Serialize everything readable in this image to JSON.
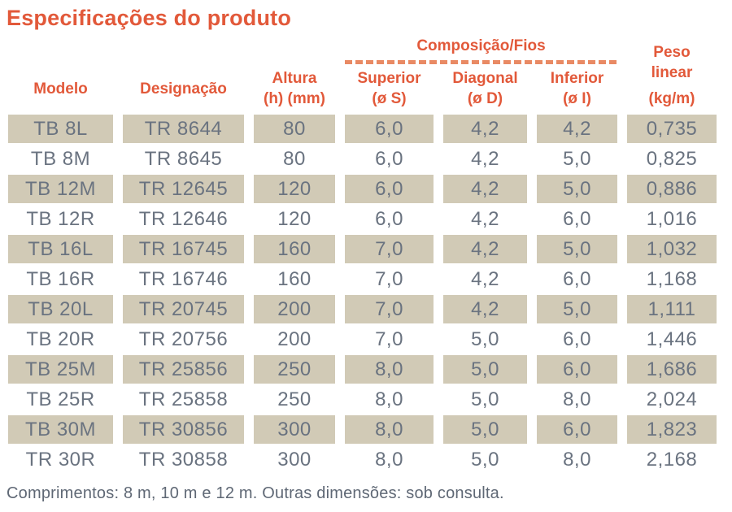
{
  "title": "Especificações do produto",
  "footnote": "Comprimentos: 8 m, 10 m e 12 m. Outras dimensões: sob consulta.",
  "colors": {
    "accent_orange": "#e2593a",
    "dash_orange": "#e98a64",
    "row_shade_beige": "#d1cab6",
    "text_gray": "#6a7380",
    "footnote_gray": "#5f6875"
  },
  "table": {
    "group_header": {
      "label": "Composição/Fios",
      "spans_columns": [
        "superior",
        "diagonal",
        "inferior"
      ]
    },
    "columns": [
      {
        "id": "modelo",
        "lines": [
          "Modelo"
        ]
      },
      {
        "id": "designacao",
        "lines": [
          "Designação"
        ]
      },
      {
        "id": "altura",
        "lines": [
          "Altura",
          "(h) (mm)"
        ]
      },
      {
        "id": "superior",
        "lines": [
          "Superior",
          "(ø S)"
        ]
      },
      {
        "id": "diagonal",
        "lines": [
          "Diagonal",
          "(ø D)"
        ]
      },
      {
        "id": "inferior",
        "lines": [
          "Inferior",
          "(ø I)"
        ]
      },
      {
        "id": "peso_linear",
        "lines": [
          "Peso",
          "linear",
          "(kg/m)"
        ]
      }
    ],
    "rows": [
      [
        "TB 8L",
        "TR 8644",
        "80",
        "6,0",
        "4,2",
        "4,2",
        "0,735"
      ],
      [
        "TB 8M",
        "TR 8645",
        "80",
        "6,0",
        "4,2",
        "5,0",
        "0,825"
      ],
      [
        "TB 12M",
        "TR 12645",
        "120",
        "6,0",
        "4,2",
        "5,0",
        "0,886"
      ],
      [
        "TB 12R",
        "TR 12646",
        "120",
        "6,0",
        "4,2",
        "6,0",
        "1,016"
      ],
      [
        "TB 16L",
        "TR 16745",
        "160",
        "7,0",
        "4,2",
        "5,0",
        "1,032"
      ],
      [
        "TB 16R",
        "TR 16746",
        "160",
        "7,0",
        "4,2",
        "6,0",
        "1,168"
      ],
      [
        "TB 20L",
        "TR 20745",
        "200",
        "7,0",
        "4,2",
        "5,0",
        "1,111"
      ],
      [
        "TB 20R",
        "TR 20756",
        "200",
        "7,0",
        "5,0",
        "6,0",
        "1,446"
      ],
      [
        "TB 25M",
        "TR 25856",
        "250",
        "8,0",
        "5,0",
        "6,0",
        "1,686"
      ],
      [
        "TB 25R",
        "TR 25858",
        "250",
        "8,0",
        "5,0",
        "8,0",
        "2,024"
      ],
      [
        "TB 30M",
        "TR 30856",
        "300",
        "8,0",
        "5,0",
        "6,0",
        "1,823"
      ],
      [
        "TR 30R",
        "TR 30858",
        "300",
        "8,0",
        "5,0",
        "8,0",
        "2,168"
      ]
    ]
  }
}
